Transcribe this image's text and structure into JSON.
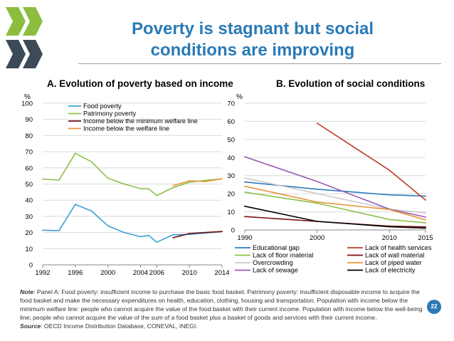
{
  "slide": {
    "title_line1": "Poverty is stagnant but social",
    "title_line2": "conditions are improving",
    "page_number": "22",
    "note_label": "Note",
    "note_text": ": Panel A: Food poverty: insufficient income to purchase the basic food basket. Patrimony poverty: insufficient disposable income to acquire the food basket and make the necessary expenditures on health, education, clothing, housing and transportation. Population with income below the minimum welfare line: people who cannot acquire the value of the food basket with their current income. Population with income below the well-being line; people who cannot acquire the value of the sum of a food basket plus a basket of goods and services with their current income.",
    "source_label": "Source",
    "source_text": ": OECD Income Distribution Database, CONEVAL, INEGI.",
    "logo": "oecd-chevrons-logo",
    "colors": {
      "title": "#2a7ab5",
      "logo": "#8cbd3f"
    }
  },
  "chart_data": [
    {
      "type": "line",
      "title": "A. Evolution of poverty based on income",
      "ylabel": "%",
      "ylim": [
        0,
        100
      ],
      "yticks": [
        0,
        10,
        20,
        30,
        40,
        50,
        60,
        70,
        80,
        90,
        100
      ],
      "xlim": [
        1992,
        2014
      ],
      "xticks": [
        1992,
        1996,
        2000,
        2004,
        2006,
        2010,
        2014
      ],
      "grid": true,
      "legend": "top-left",
      "series": [
        {
          "name": "Food poverty",
          "color": "#3aa0d8",
          "x": [
            1992,
            1994,
            1996,
            1998,
            2000,
            2002,
            2004,
            2005,
            2006,
            2008,
            2010,
            2012,
            2014
          ],
          "y": [
            21.4,
            21.2,
            37.4,
            33.3,
            24.1,
            20.0,
            17.4,
            18.2,
            14.0,
            18.6,
            18.8,
            19.7,
            20.6
          ]
        },
        {
          "name": "Patrimony poverty",
          "color": "#8cc04a",
          "x": [
            1992,
            1994,
            1996,
            1998,
            2000,
            2002,
            2004,
            2005,
            2006,
            2008,
            2010,
            2012,
            2014
          ],
          "y": [
            53.1,
            52.4,
            69.0,
            63.7,
            53.6,
            50.0,
            47.2,
            47.0,
            42.9,
            47.8,
            51.1,
            52.3,
            53.2
          ]
        },
        {
          "name": "Income below the minimum welfare line",
          "color": "#6b0f0f",
          "x": [
            2008,
            2010,
            2012,
            2014
          ],
          "y": [
            16.8,
            19.4,
            20.0,
            20.6
          ]
        },
        {
          "name": "Income below the welfare line",
          "color": "#e8963a",
          "x": [
            2008,
            2010,
            2012,
            2014
          ],
          "y": [
            49.0,
            52.0,
            51.6,
            53.2
          ]
        }
      ]
    },
    {
      "type": "line",
      "title": "B. Evolution of social conditions",
      "ylabel": "%",
      "ylim": [
        0,
        70
      ],
      "yticks": [
        0,
        10,
        20,
        30,
        40,
        50,
        60,
        70
      ],
      "xlim": [
        1990,
        2015
      ],
      "xticks": [
        1990,
        2000,
        2010,
        2015
      ],
      "grid": true,
      "legend": "bottom",
      "series": [
        {
          "name": "Educational gap",
          "color": "#2d7bc0",
          "x": [
            1990,
            2000,
            2010,
            2015
          ],
          "y": [
            26.5,
            22.5,
            19.4,
            18.7
          ]
        },
        {
          "name": "Lack of floor material",
          "color": "#8cc04a",
          "x": [
            1990,
            2000,
            2010,
            2015
          ],
          "y": [
            20.9,
            14.8,
            5.8,
            3.9
          ]
        },
        {
          "name": "Overcrowding",
          "color": "#c9c9cf",
          "x": [
            1990,
            2000,
            2010,
            2015
          ],
          "y": [
            28.7,
            20.1,
            11.5,
            9.4
          ]
        },
        {
          "name": "Lack of sewage",
          "color": "#9b59b6",
          "x": [
            1990,
            2000,
            2010,
            2015
          ],
          "y": [
            40.4,
            26.8,
            11.5,
            7.1
          ]
        },
        {
          "name": "Lack of health services",
          "color": "#c0392b",
          "x": [
            2000,
            2010,
            2015
          ],
          "y": [
            59.0,
            33.0,
            16.5
          ]
        },
        {
          "name": "Lack of wall material",
          "color": "#7b1010",
          "x": [
            1990,
            2000,
            2010,
            2015
          ],
          "y": [
            7.4,
            4.7,
            2.1,
            1.7
          ]
        },
        {
          "name": "Lack of piped water",
          "color": "#e8963a",
          "x": [
            1990,
            2000,
            2010,
            2015
          ],
          "y": [
            24.1,
            15.4,
            11.3,
            5.6
          ]
        },
        {
          "name": "Lack of electricity",
          "color": "#000000",
          "x": [
            1990,
            2000,
            2010,
            2015
          ],
          "y": [
            13.1,
            4.7,
            1.8,
            1.0
          ]
        }
      ]
    }
  ]
}
